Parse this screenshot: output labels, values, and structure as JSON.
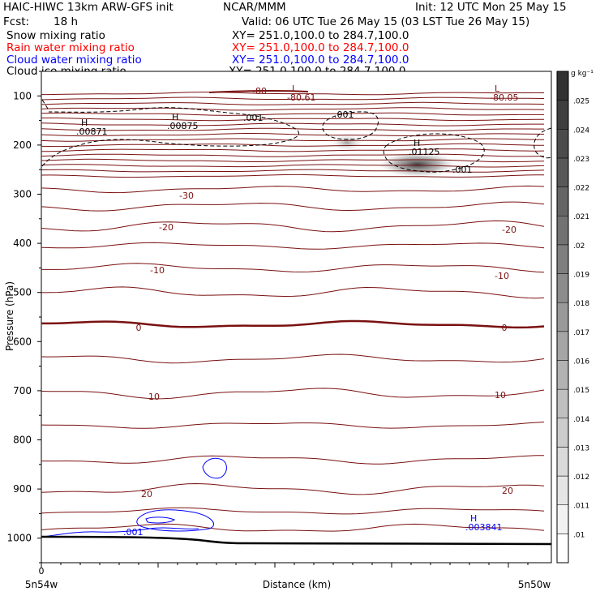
{
  "header": {
    "title": "HAIC-HIWC 13km ARW-GFS init",
    "org": "NCAR/MMM",
    "init": "Init: 12 UTC Mon 25 May 15",
    "fcst_label": "Fcst:",
    "fcst_value": "18 h",
    "valid": "Valid: 06 UTC Tue 26 May 15 (03 LST Tue 26 May 15)"
  },
  "fields": [
    {
      "name": "Snow mixing ratio",
      "xy": "XY= 251.0,100.0 to 284.7,100.0",
      "color": "#000000"
    },
    {
      "name": "Rain water mixing ratio",
      "xy": "XY= 251.0,100.0 to 284.7,100.0",
      "color": "#ff0000"
    },
    {
      "name": "Cloud water mixing ratio",
      "xy": "XY= 251.0,100.0 to 284.7,100.0",
      "color": "#0000ff"
    },
    {
      "name": "Cloud ice mixing ratio",
      "xy": "XY= 251.0,100.0 to 284.7,100.0",
      "color": "#000000"
    }
  ],
  "chart_data": {
    "type": "cross-section contour",
    "xlabel": "Distance (km)",
    "ylabel": "Pressure (hPa)",
    "x_tick_label_start": "0",
    "x_left_label": "5n54w",
    "x_right_label": "5n50w",
    "y_ticks": [
      100,
      200,
      300,
      400,
      500,
      600,
      700,
      800,
      900,
      1000
    ],
    "y_range": [
      1050,
      50
    ],
    "colorbar": {
      "unit": "g kg⁻¹",
      "levels": [
        ".01",
        ".011",
        ".012",
        ".013",
        ".014",
        ".015",
        ".016",
        ".017",
        ".018",
        ".019",
        ".02",
        ".021",
        ".022",
        ".023",
        ".024",
        ".025"
      ]
    },
    "temperature_labels": [
      "-80",
      "-30",
      "-20",
      "-20",
      "-10",
      "-10",
      "0",
      "0",
      "10",
      "10",
      "20",
      "20"
    ],
    "extrema": [
      {
        "kind": "L",
        "value": "-80.61",
        "pressure": 103
      },
      {
        "kind": "L",
        "value": "-80.05",
        "pressure": 103
      },
      {
        "kind": "H",
        "value": ".00871",
        "pressure": 170
      },
      {
        "kind": "H",
        "value": ".00875",
        "pressure": 165
      },
      {
        "kind": "H",
        "value": ".01125",
        "pressure": 215
      },
      {
        "kind": "H",
        "value": ".003841",
        "pressure": 985
      }
    ],
    "ice_contour_label": ".001",
    "cloud_water_label": ".001",
    "colors": {
      "isotherm": "#7a1010",
      "snow": "#000000",
      "cloud_water": "#0000ff",
      "terrain": "#000000"
    }
  }
}
